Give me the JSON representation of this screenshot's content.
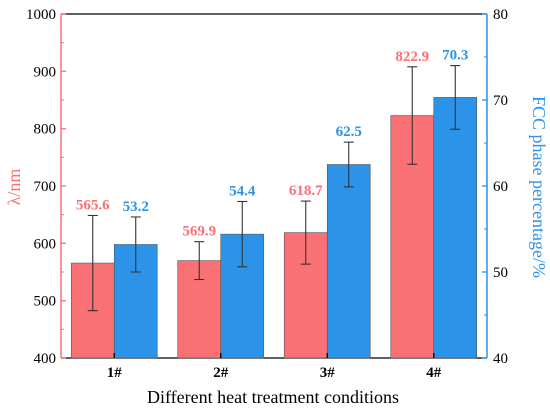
{
  "chart_data": {
    "type": "bar",
    "categories": [
      "1#",
      "2#",
      "3#",
      "4#"
    ],
    "xlabel": "Different heat treatment conditions",
    "series": [
      {
        "ylabel": "λ/nm",
        "axis": "left",
        "color": "#F97175",
        "values": [
          565.6,
          569.9,
          618.7,
          822.9
        ],
        "labels": [
          "565.6",
          "569.9",
          "618.7",
          "822.9"
        ],
        "error": [
          83,
          33,
          55,
          85
        ]
      },
      {
        "ylabel": "FCC phase percentage/%",
        "axis": "right",
        "color": "#2C94E8",
        "values": [
          53.2,
          54.4,
          62.5,
          70.3
        ],
        "labels": [
          "53.2",
          "54.4",
          "62.5",
          "70.3"
        ],
        "error": [
          3.2,
          3.8,
          2.6,
          3.7
        ]
      }
    ],
    "y_left": {
      "range": [
        400,
        1000
      ],
      "ticks": [
        "400",
        "500",
        "600",
        "700",
        "800",
        "900",
        "1000"
      ],
      "color": "#F97175"
    },
    "y_right": {
      "range": [
        40,
        80
      ],
      "ticks": [
        "40",
        "50",
        "60",
        "70",
        "80"
      ],
      "color": "#2C94E8"
    },
    "grid": false,
    "legend": "none"
  }
}
